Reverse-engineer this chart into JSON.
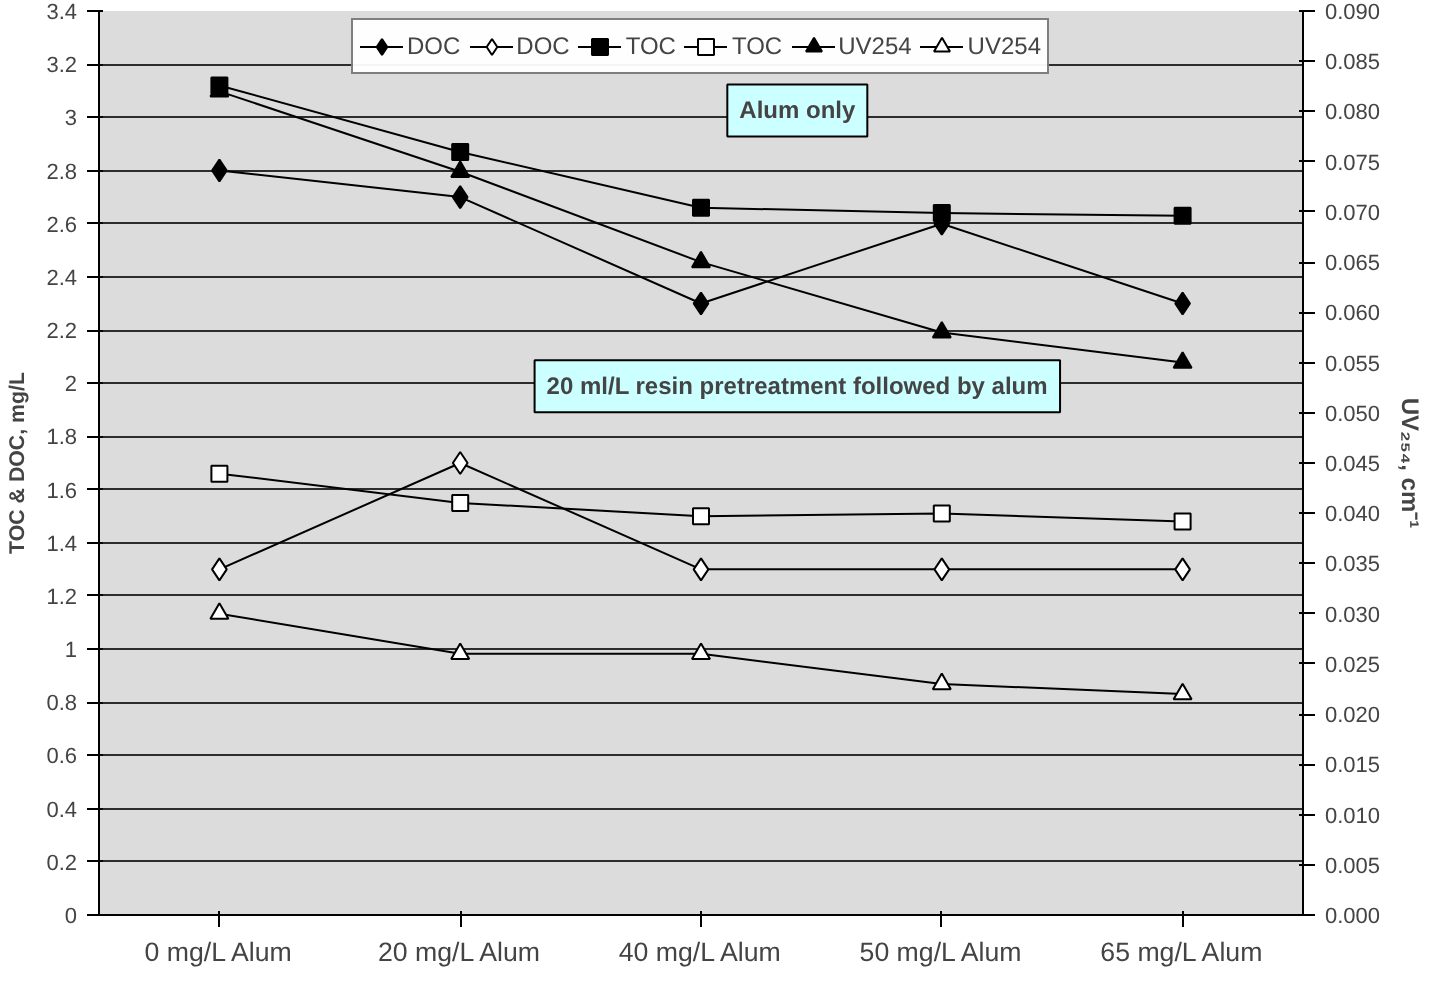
{
  "chart_data": {
    "type": "line",
    "categories": [
      "0 mg/L Alum",
      "20 mg/L Alum",
      "40 mg/L Alum",
      "50 mg/L Alum",
      "65 mg/L Alum"
    ],
    "ylabel": "TOC & DOC, mg/L",
    "y2label": "UV₂₅₄, cm⁻¹",
    "ylim": [
      0,
      3.4
    ],
    "yticks": [
      0,
      0.2,
      0.4,
      0.6,
      0.8,
      1,
      1.2,
      1.4,
      1.6,
      1.8,
      2,
      2.2,
      2.4,
      2.6,
      2.8,
      3,
      3.2,
      3.4
    ],
    "y2lim": [
      0,
      0.09
    ],
    "y2ticks": [
      {
        "value": 0,
        "label": "0.000"
      },
      {
        "value": 0.005,
        "label": "0.005"
      },
      {
        "value": 0.01,
        "label": "0.010"
      },
      {
        "value": 0.015,
        "label": "0.015"
      },
      {
        "value": 0.02,
        "label": "0.020"
      },
      {
        "value": 0.025,
        "label": "0.025"
      },
      {
        "value": 0.03,
        "label": "0.030"
      },
      {
        "value": 0.035,
        "label": "0.035"
      },
      {
        "value": 0.04,
        "label": "0.040"
      },
      {
        "value": 0.045,
        "label": "0.045"
      },
      {
        "value": 0.05,
        "label": "0.050"
      },
      {
        "value": 0.055,
        "label": "0.055"
      },
      {
        "value": 0.06,
        "label": "0.060"
      },
      {
        "value": 0.065,
        "label": "0.065"
      },
      {
        "value": 0.07,
        "label": "0.070"
      },
      {
        "value": 0.075,
        "label": "0.075"
      },
      {
        "value": 0.08,
        "label": "0.080"
      },
      {
        "value": 0.085,
        "label": "0.085"
      },
      {
        "value": 0.09,
        "label": "0.090"
      }
    ],
    "grid": "y",
    "legend": "top",
    "line_style": "solid",
    "annotations": [
      "Alum only",
      "20 ml/L resin pretreatment followed by alum"
    ],
    "series": [
      {
        "name": "DOC",
        "color": "#000000",
        "marker": "diamond",
        "values": [
          2.8,
          2.7,
          2.3,
          2.6,
          2.3
        ]
      },
      {
        "name": "DOC",
        "color": "#000000",
        "marker": "diamond-open",
        "values": [
          1.3,
          1.7,
          1.3,
          1.3,
          1.3
        ]
      },
      {
        "name": "TOC",
        "color": "#000000",
        "marker": "square",
        "values": [
          3.12,
          2.87,
          2.66,
          2.64,
          2.63
        ]
      },
      {
        "name": "TOC",
        "color": "#000000",
        "marker": "square-open",
        "values": [
          1.66,
          1.55,
          1.5,
          1.51,
          1.48
        ]
      },
      {
        "name": "UV254",
        "color": "#000000",
        "marker": "triangle",
        "axis": "y2",
        "values": [
          0.082,
          0.074,
          0.065,
          0.058,
          0.055
        ]
      },
      {
        "name": "UV254",
        "color": "#000000",
        "marker": "triangle-open",
        "axis": "y2",
        "values": [
          0.03,
          0.026,
          0.026,
          0.023,
          0.022
        ]
      }
    ]
  }
}
